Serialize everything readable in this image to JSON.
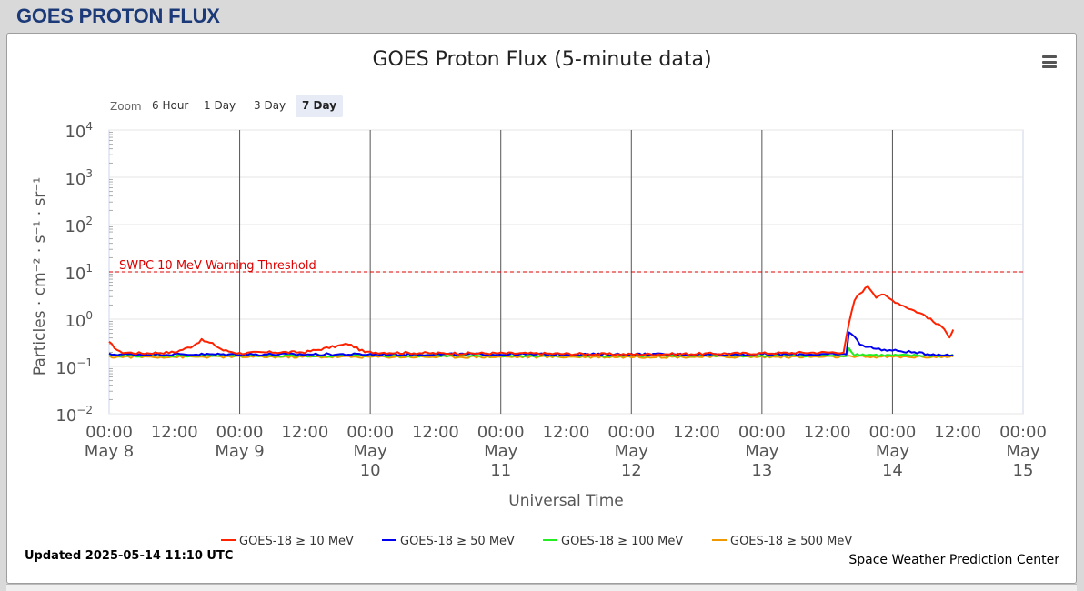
{
  "page": {
    "title": "GOES PROTON FLUX"
  },
  "chart": {
    "title": "GOES Proton Flux (5-minute data)",
    "zoom_label": "Zoom",
    "zoom_buttons": [
      "6 Hour",
      "1 Day",
      "3 Day",
      "7 Day"
    ],
    "zoom_active": "7 Day",
    "updated": "Updated 2025-05-14 11:10 UTC",
    "credit": "Space Weather Prediction Center"
  },
  "chart_data": {
    "type": "line",
    "title": "GOES Proton Flux (5-minute data)",
    "xlabel": "Universal Time",
    "ylabel": "Particles · cm⁻² · s⁻¹ · sr⁻¹",
    "y_scale": "log",
    "ylim": [
      0.01,
      10000
    ],
    "xlim": [
      "2025-05-08 00:00",
      "2025-05-15 00:00"
    ],
    "grid": true,
    "legend_position": "bottom-center",
    "y_ticks": [
      {
        "base": "10",
        "exp": "4"
      },
      {
        "base": "10",
        "exp": "3"
      },
      {
        "base": "10",
        "exp": "2"
      },
      {
        "base": "10",
        "exp": "1"
      },
      {
        "base": "10",
        "exp": "0"
      },
      {
        "base": "10",
        "exp": "−1"
      },
      {
        "base": "10",
        "exp": "−2"
      }
    ],
    "x_ticks": [
      {
        "time": "00:00",
        "date": [
          "May 8"
        ]
      },
      {
        "time": "12:00",
        "date": []
      },
      {
        "time": "00:00",
        "date": [
          "May 9"
        ]
      },
      {
        "time": "12:00",
        "date": []
      },
      {
        "time": "00:00",
        "date": [
          "May",
          "10"
        ]
      },
      {
        "time": "12:00",
        "date": []
      },
      {
        "time": "00:00",
        "date": [
          "May",
          "11"
        ]
      },
      {
        "time": "12:00",
        "date": []
      },
      {
        "time": "00:00",
        "date": [
          "May",
          "12"
        ]
      },
      {
        "time": "12:00",
        "date": []
      },
      {
        "time": "00:00",
        "date": [
          "May",
          "13"
        ]
      },
      {
        "time": "12:00",
        "date": []
      },
      {
        "time": "00:00",
        "date": [
          "May",
          "14"
        ]
      },
      {
        "time": "12:00",
        "date": []
      },
      {
        "time": "00:00",
        "date": [
          "May",
          "15"
        ]
      }
    ],
    "threshold": {
      "label": "SWPC 10 MeV Warning Threshold",
      "value": 10,
      "color": "#dd0000"
    },
    "series": [
      {
        "name": "GOES-18 ≥ 10 MeV",
        "color": "#ff2200",
        "points": [
          [
            "2025-05-08 00:00",
            0.32
          ],
          [
            "2025-05-08 02:00",
            0.2
          ],
          [
            "2025-05-08 06:00",
            0.19
          ],
          [
            "2025-05-08 12:00",
            0.2
          ],
          [
            "2025-05-08 15:00",
            0.26
          ],
          [
            "2025-05-08 17:00",
            0.36
          ],
          [
            "2025-05-08 19:00",
            0.3
          ],
          [
            "2025-05-08 21:00",
            0.22
          ],
          [
            "2025-05-09 00:00",
            0.19
          ],
          [
            "2025-05-09 06:00",
            0.2
          ],
          [
            "2025-05-09 12:00",
            0.2
          ],
          [
            "2025-05-09 20:00",
            0.3
          ],
          [
            "2025-05-09 23:00",
            0.2
          ],
          [
            "2025-05-10 12:00",
            0.19
          ],
          [
            "2025-05-11 00:00",
            0.19
          ],
          [
            "2025-05-12 00:00",
            0.18
          ],
          [
            "2025-05-13 00:00",
            0.19
          ],
          [
            "2025-05-13 15:00",
            0.2
          ],
          [
            "2025-05-13 16:00",
            0.8
          ],
          [
            "2025-05-13 17:00",
            2.5
          ],
          [
            "2025-05-13 18:00",
            3.5
          ],
          [
            "2025-05-13 19:30",
            5.0
          ],
          [
            "2025-05-13 21:00",
            3.0
          ],
          [
            "2025-05-13 22:00",
            3.4
          ],
          [
            "2025-05-14 00:00",
            2.5
          ],
          [
            "2025-05-14 03:00",
            1.7
          ],
          [
            "2025-05-14 06:00",
            1.2
          ],
          [
            "2025-05-14 08:00",
            0.8
          ],
          [
            "2025-05-14 09:30",
            0.65
          ],
          [
            "2025-05-14 10:30",
            0.42
          ],
          [
            "2025-05-14 11:10",
            0.6
          ]
        ]
      },
      {
        "name": "GOES-18 ≥ 50 MeV",
        "color": "#0000ee",
        "points": [
          [
            "2025-05-08 00:00",
            0.18
          ],
          [
            "2025-05-10 00:00",
            0.18
          ],
          [
            "2025-05-12 00:00",
            0.18
          ],
          [
            "2025-05-13 15:30",
            0.18
          ],
          [
            "2025-05-13 16:00",
            0.55
          ],
          [
            "2025-05-13 17:00",
            0.42
          ],
          [
            "2025-05-13 18:00",
            0.3
          ],
          [
            "2025-05-13 20:00",
            0.25
          ],
          [
            "2025-05-13 23:00",
            0.22
          ],
          [
            "2025-05-14 02:00",
            0.21
          ],
          [
            "2025-05-14 05:00",
            0.19
          ],
          [
            "2025-05-14 08:00",
            0.18
          ],
          [
            "2025-05-14 11:10",
            0.17
          ]
        ]
      },
      {
        "name": "GOES-18 ≥ 100 MeV",
        "color": "#22ee22",
        "points": [
          [
            "2025-05-08 00:00",
            0.17
          ],
          [
            "2025-05-10 00:00",
            0.17
          ],
          [
            "2025-05-12 00:00",
            0.17
          ],
          [
            "2025-05-13 15:30",
            0.17
          ],
          [
            "2025-05-13 16:00",
            0.24
          ],
          [
            "2025-05-13 17:00",
            0.18
          ],
          [
            "2025-05-14 00:00",
            0.17
          ],
          [
            "2025-05-14 11:10",
            0.17
          ]
        ]
      },
      {
        "name": "GOES-18 ≥ 500 MeV",
        "color": "#ee9900",
        "points": [
          [
            "2025-05-08 00:00",
            0.16
          ],
          [
            "2025-05-10 00:00",
            0.16
          ],
          [
            "2025-05-12 00:00",
            0.16
          ],
          [
            "2025-05-14 00:00",
            0.16
          ],
          [
            "2025-05-14 11:10",
            0.16
          ]
        ]
      }
    ]
  }
}
